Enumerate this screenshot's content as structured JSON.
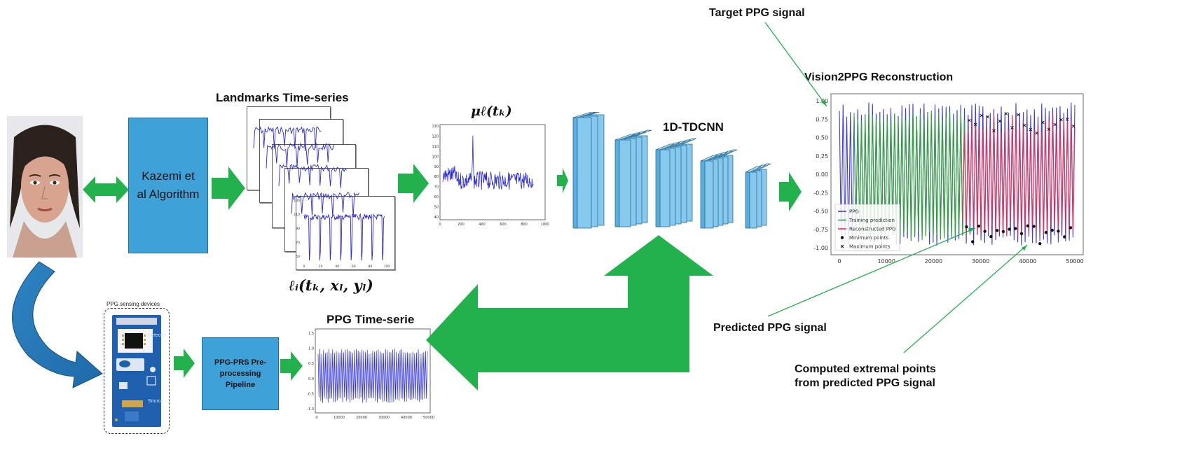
{
  "algorithm_box": {
    "label": "Kazemi et al Algorithm",
    "color": "#3ea1d8"
  },
  "preproc_box": {
    "label": "PPG-PRS Pre-processing Pipeline",
    "color": "#3ea1d8"
  },
  "sensing": {
    "title": "PPG sensing devices",
    "detector": "Detector",
    "source": "Source"
  },
  "landmarks": {
    "title": "Landmarks Time-series",
    "formula": "ℓᵢ(tₖ, xₗ, yₗ)",
    "y_ticks": [
      "130",
      "120",
      "110",
      "100",
      "90",
      "80",
      "70",
      "60",
      "50",
      "40"
    ],
    "x_ticks": [
      "0",
      "20",
      "40",
      "60",
      "80",
      "100"
    ]
  },
  "mean_plot": {
    "title": "μℓ(tₖ)",
    "y_ticks": [
      "130",
      "120",
      "110",
      "100",
      "90",
      "80",
      "70",
      "60",
      "50",
      "40"
    ],
    "x_ticks": [
      "0",
      "200",
      "400",
      "600",
      "800",
      "1000"
    ]
  },
  "network": {
    "title": "1D-TDCNN",
    "color": "#87c8ee"
  },
  "ppg_plot": {
    "title": "PPG Time-serie",
    "y_ticks": [
      "1.5",
      "1.0",
      "0.5",
      "0.0",
      "-0.5",
      "-1.0"
    ],
    "x_ticks": [
      "0",
      "10000",
      "20000",
      "30000",
      "40000",
      "50000"
    ]
  },
  "reconstruction": {
    "title": "Vision2PPG Reconstruction",
    "y_ticks": [
      "1.00",
      "0.75",
      "0.50",
      "0.25",
      "0.00",
      "-0.25",
      "-0.50",
      "-0.75",
      "-1.00"
    ],
    "x_ticks": [
      "0",
      "10000",
      "20000",
      "30000",
      "40000",
      "50000"
    ],
    "legend": [
      "PPG",
      "Training prediction",
      "Reconstructed PPG",
      "Minimum points",
      "Maximum points"
    ],
    "colors": {
      "ppg": "#3b3bdf",
      "training": "#2ea52e",
      "reconstructed": "#e8314d"
    }
  },
  "annotations": {
    "target": "Target PPG signal",
    "predicted": "Predicted PPG signal",
    "extremal": "Computed extremal points from predicted PPG signal"
  },
  "arrow_color": "#22b14c"
}
